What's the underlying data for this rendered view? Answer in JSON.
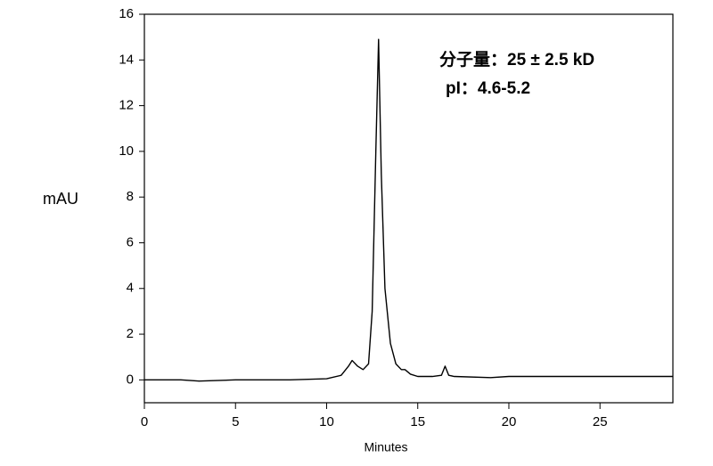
{
  "chart_data": {
    "type": "line",
    "y_label": "mAU",
    "x_label": "Minutes",
    "annotations": [
      "分子量：25 ± 2.5 kD",
      "pI：4.6-5.2"
    ],
    "x": [
      0,
      2,
      3,
      5,
      8,
      10,
      10.8,
      11.2,
      11.4,
      11.7,
      12.0,
      12.3,
      12.5,
      12.7,
      12.85,
      13.0,
      13.2,
      13.5,
      13.8,
      14.1,
      14.3,
      14.6,
      15,
      15.8,
      16.3,
      16.5,
      16.7,
      17,
      19,
      20,
      25,
      29
    ],
    "series": [
      {
        "name": "mAU",
        "color": "#000000",
        "values": [
          0,
          0,
          -0.05,
          0,
          0,
          0.05,
          0.2,
          0.6,
          0.85,
          0.6,
          0.45,
          0.7,
          3,
          10,
          14.9,
          9,
          4,
          1.6,
          0.7,
          0.45,
          0.45,
          0.25,
          0.15,
          0.15,
          0.2,
          0.6,
          0.2,
          0.15,
          0.1,
          0.15,
          0.15,
          0.15
        ]
      }
    ],
    "xlim": [
      0,
      29
    ],
    "xticks": [
      0,
      5,
      10,
      15,
      20,
      25
    ],
    "ylim": [
      -1,
      16
    ],
    "yticks": [
      0,
      2,
      4,
      6,
      8,
      10,
      12,
      14,
      16
    ],
    "grid": false
  }
}
